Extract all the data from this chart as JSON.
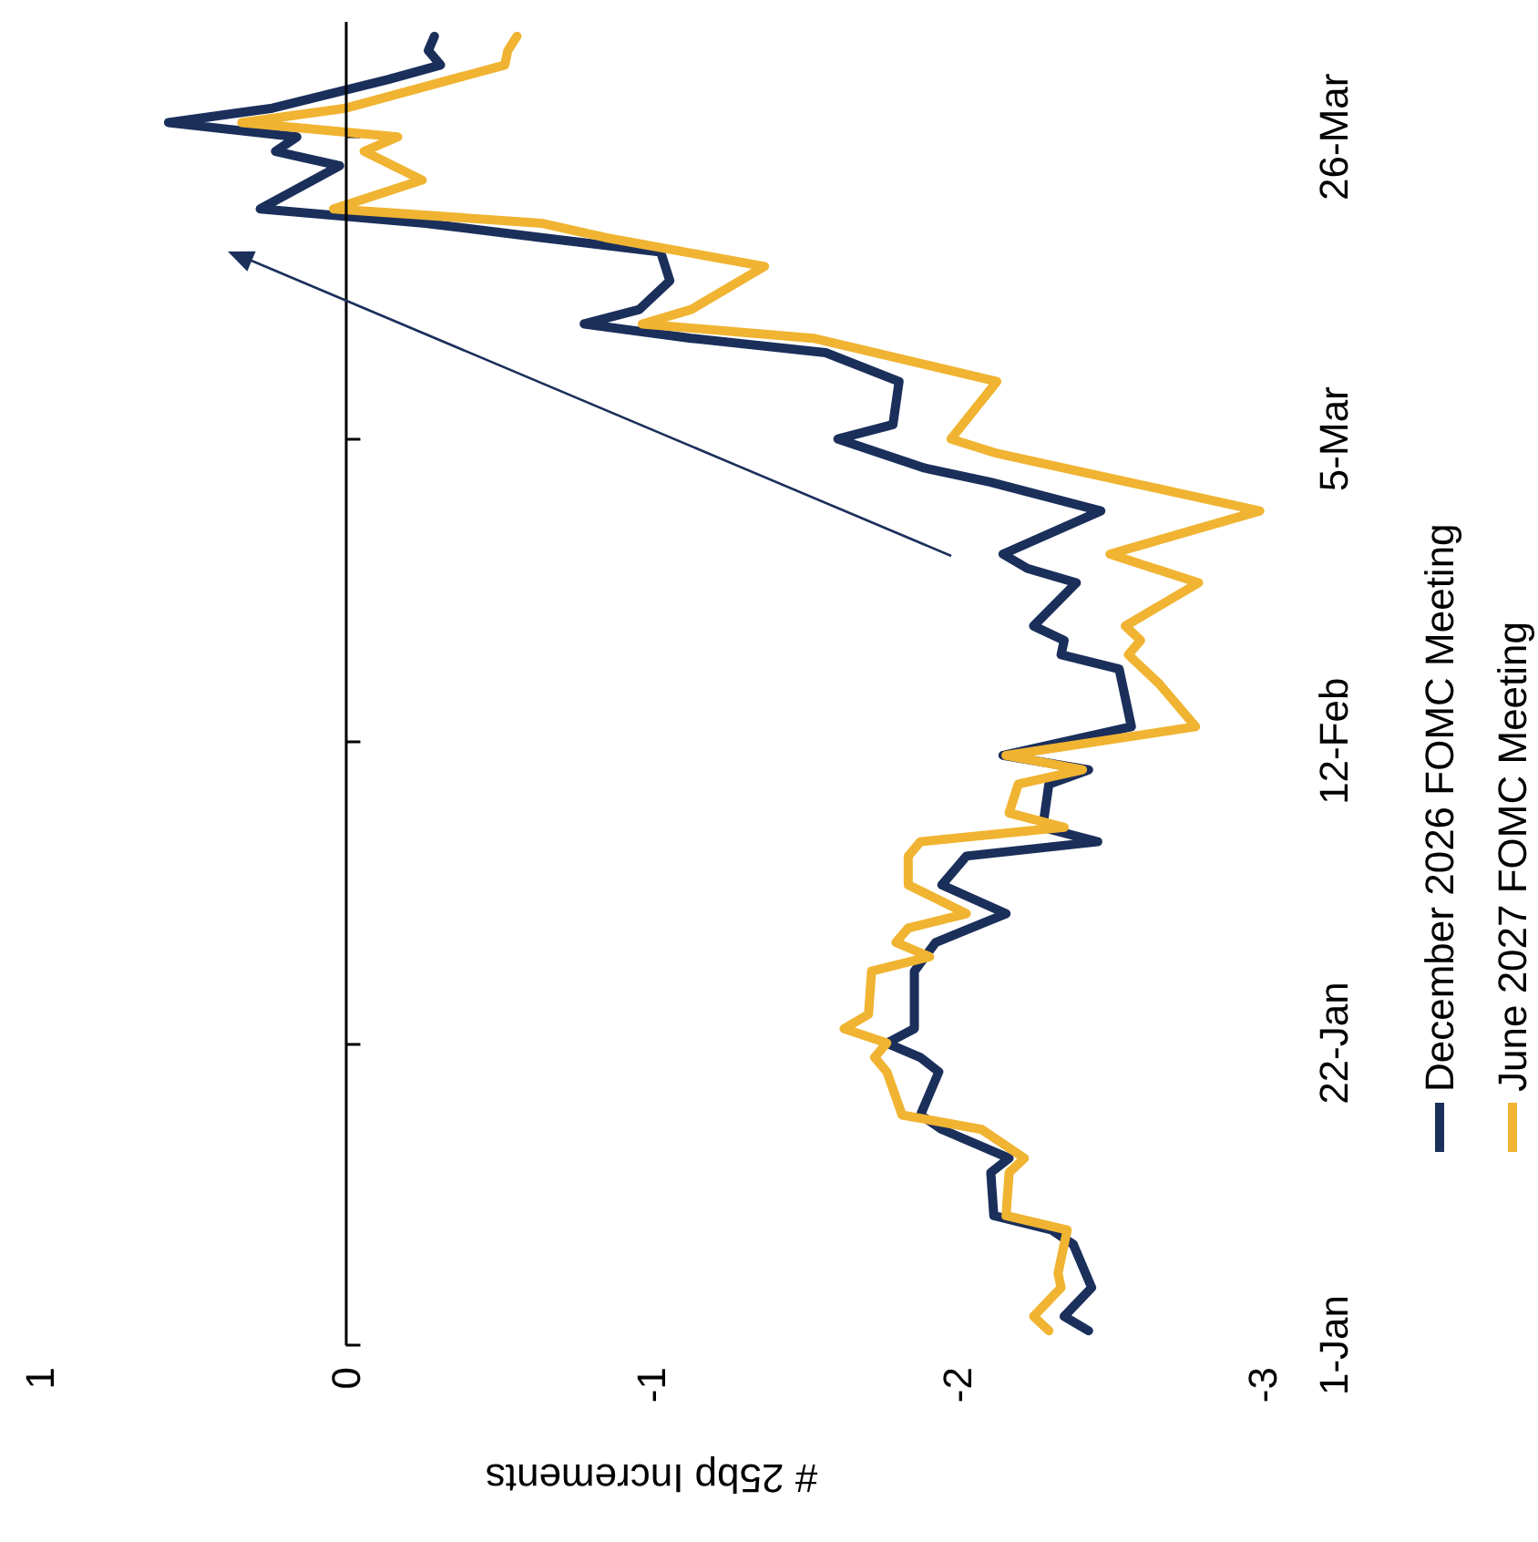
{
  "chart_data": {
    "type": "line",
    "orientation": "horizontal",
    "xlabel": "# 25bp Increments",
    "xlim": [
      1,
      -3
    ],
    "xticks": [
      1,
      0,
      -1,
      -2,
      -3
    ],
    "ylim": [
      "--01-01",
      "--04-03"
    ],
    "yticks": [
      {
        "value": "--01-01",
        "label": "1-Jan"
      },
      {
        "value": "--01-22",
        "label": "22-Jan"
      },
      {
        "value": "--02-12",
        "label": "12-Feb"
      },
      {
        "value": "--03-05",
        "label": "5-Mar"
      },
      {
        "value": "--03-26",
        "label": "26-Mar"
      }
    ],
    "grid": false,
    "legend": "right",
    "ref_lines": [
      {
        "axis": "x",
        "value": 0,
        "color": "#000000",
        "line_style": "solid"
      }
    ],
    "line_style": "solid",
    "series": [
      {
        "name": "December 2026 FOMC Meeting",
        "color": "#1b2f5b",
        "x": [
          "--01-02",
          "--01-03",
          "--01-05",
          "--01-08",
          "--01-09",
          "--01-10",
          "--01-13",
          "--01-14",
          "--01-16",
          "--01-17",
          "--01-20",
          "--01-21",
          "--01-22",
          "--01-23",
          "--01-27",
          "--01-29",
          "--01-31",
          "--02-02",
          "--02-04",
          "--02-05",
          "--02-06",
          "--02-09",
          "--02-10",
          "--02-11",
          "--02-13",
          "--02-17",
          "--02-18",
          "--02-19",
          "--02-20",
          "--02-23",
          "--02-24",
          "--02-25",
          "--02-28",
          "--03-02",
          "--03-03",
          "--03-05",
          "--03-06",
          "--03-09",
          "--03-11",
          "--03-12",
          "--03-13",
          "--03-14",
          "--03-16",
          "--03-18",
          "--03-19",
          "--03-20",
          "--03-21",
          "--03-24",
          "--03-25",
          "--03-26",
          "--03-27",
          "--03-28",
          "--03-30",
          "--03-31",
          "--04-01",
          "--04-02"
        ],
        "values": [
          -2.43,
          -2.35,
          -2.44,
          -2.38,
          -2.31,
          -2.12,
          -2.11,
          -2.17,
          -1.95,
          -1.88,
          -1.94,
          -1.88,
          -1.77,
          -1.86,
          -1.86,
          -1.93,
          -2.16,
          -1.95,
          -2.03,
          -2.46,
          -2.28,
          -2.3,
          -2.43,
          -2.15,
          -2.57,
          -2.53,
          -2.34,
          -2.35,
          -2.25,
          -2.39,
          -2.23,
          -2.15,
          -2.47,
          -2.11,
          -1.89,
          -1.61,
          -1.79,
          -1.81,
          -1.57,
          -1.13,
          -0.78,
          -0.96,
          -1.06,
          -1.03,
          -0.64,
          -0.26,
          0.28,
          0.02,
          0.23,
          0.16,
          0.58,
          0.24,
          -0.14,
          -0.31,
          -0.27,
          -0.29
        ]
      },
      {
        "name": "June 2027 FOMC Meeting",
        "color": "#f0b432",
        "x": [
          "--01-02",
          "--01-03",
          "--01-05",
          "--01-06",
          "--01-09",
          "--01-10",
          "--01-13",
          "--01-14",
          "--01-16",
          "--01-17",
          "--01-20",
          "--01-21",
          "--01-22",
          "--01-23",
          "--01-24",
          "--01-27",
          "--01-28",
          "--01-29",
          "--01-30",
          "--01-31",
          "--02-02",
          "--02-04",
          "--02-05",
          "--02-06",
          "--02-07",
          "--02-09",
          "--02-10",
          "--02-11",
          "--02-13",
          "--02-16",
          "--02-18",
          "--02-19",
          "--02-20",
          "--02-23",
          "--02-25",
          "--02-28",
          "--03-04",
          "--03-05",
          "--03-09",
          "--03-12",
          "--03-13",
          "--03-14",
          "--03-17",
          "--03-19",
          "--03-20",
          "--03-21",
          "--03-23",
          "--03-25",
          "--03-26",
          "--03-27",
          "--03-28",
          "--03-31",
          "--04-01",
          "--04-02"
        ],
        "values": [
          -2.3,
          -2.25,
          -2.34,
          -2.33,
          -2.36,
          -2.16,
          -2.17,
          -2.22,
          -2.08,
          -1.82,
          -1.77,
          -1.73,
          -1.77,
          -1.63,
          -1.71,
          -1.72,
          -1.91,
          -1.8,
          -1.84,
          -2.03,
          -1.84,
          -1.84,
          -1.88,
          -2.35,
          -2.17,
          -2.2,
          -2.41,
          -2.16,
          -2.78,
          -2.66,
          -2.56,
          -2.6,
          -2.55,
          -2.79,
          -2.5,
          -2.99,
          -2.13,
          -1.98,
          -2.13,
          -1.53,
          -0.97,
          -1.13,
          -1.37,
          -0.85,
          -0.64,
          0.04,
          -0.25,
          -0.06,
          -0.17,
          0.34,
          0,
          -0.52,
          -0.53,
          -0.56
        ]
      }
    ]
  }
}
